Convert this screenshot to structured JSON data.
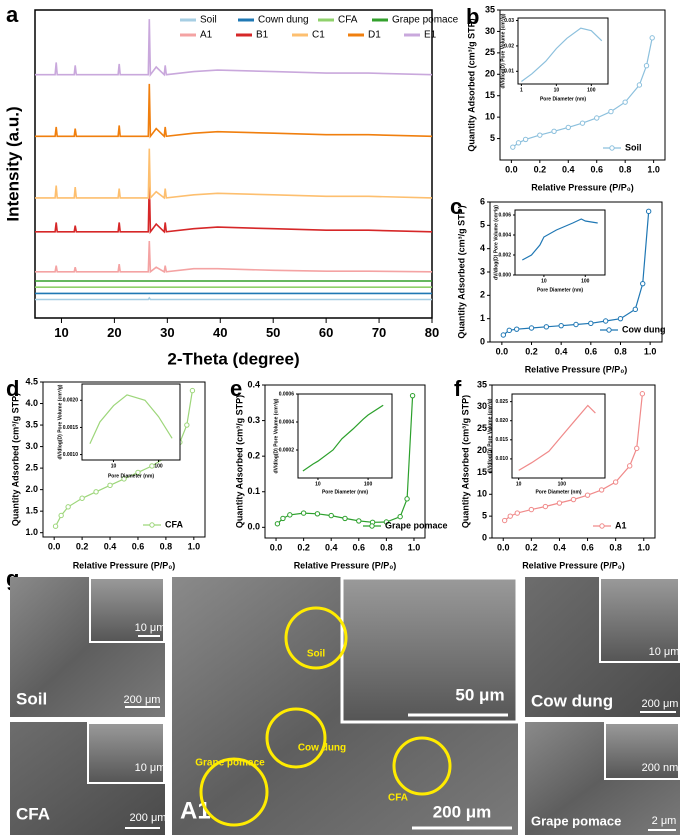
{
  "chart_data": [
    {
      "type": "line",
      "x_label": "2-Theta (degree)",
      "y_label": "Intensity (a.u.)",
      "x": [
        5,
        8.8,
        9.0,
        9.2,
        12.4,
        12.6,
        12.8,
        20.7,
        20.9,
        21.1,
        26.4,
        26.6,
        26.8,
        27.9,
        29.4,
        29.6,
        29.8,
        35,
        39.5,
        50.1,
        60,
        68,
        80
      ],
      "xlim": [
        5,
        80
      ],
      "xticks": [
        10,
        20,
        30,
        40,
        50,
        60,
        70,
        80
      ],
      "ylim": [
        0,
        100
      ],
      "legend": "top",
      "series": [
        {
          "name": "Soil",
          "color": "#a6cee3",
          "values": [
            6,
            6,
            6,
            6,
            6,
            6,
            6,
            6,
            6,
            6,
            6,
            6.5,
            6,
            6,
            6,
            6,
            6,
            6,
            6,
            6,
            6,
            6,
            6
          ]
        },
        {
          "name": "Cown dung",
          "color": "#1f78b4",
          "values": [
            8,
            8,
            8,
            8,
            8,
            8,
            8,
            8,
            8,
            8,
            8,
            8,
            8,
            8,
            8,
            8,
            8,
            8,
            8,
            8,
            8,
            8,
            8
          ]
        },
        {
          "name": "CFA",
          "color": "#8fd16b",
          "values": [
            10,
            10,
            10,
            10,
            10,
            10,
            10,
            10,
            10,
            10,
            10,
            10,
            10,
            10,
            10,
            10,
            10,
            10,
            10,
            10,
            10,
            10,
            10
          ]
        },
        {
          "name": "Grape pomace",
          "color": "#33a02c",
          "values": [
            12,
            12,
            12,
            12,
            12,
            12,
            12,
            12,
            12,
            12,
            12,
            12,
            12,
            12,
            12,
            12,
            12,
            12,
            12,
            12,
            12,
            12,
            12
          ]
        },
        {
          "name": "A1",
          "color": "#f4a3a3",
          "values": [
            15,
            15,
            17,
            15,
            15,
            16.5,
            15,
            15,
            17.5,
            15,
            15,
            25,
            15,
            16.5,
            15,
            17,
            15,
            16,
            16,
            15.5,
            15.2,
            15.2,
            15
          ]
        },
        {
          "name": "B1",
          "color": "#d62728",
          "values": [
            28,
            28,
            31,
            28,
            28,
            30,
            28,
            28,
            31,
            28,
            28,
            45,
            28,
            30.5,
            28,
            31,
            28,
            29,
            29.5,
            29,
            28.5,
            28.5,
            28
          ]
        },
        {
          "name": "C1",
          "color": "#fdbf6f",
          "values": [
            39,
            39,
            43,
            39,
            39,
            42.5,
            39,
            39,
            42,
            39,
            39,
            55,
            39,
            41,
            39,
            42,
            39,
            40,
            40.5,
            40,
            39.5,
            39.5,
            39
          ]
        },
        {
          "name": "D1",
          "color": "#f07f0e",
          "values": [
            59,
            59,
            62,
            59,
            59,
            61.5,
            59,
            59,
            62.5,
            59,
            59,
            76,
            59,
            61.5,
            59,
            62,
            59,
            60,
            60.5,
            60,
            59.5,
            59.5,
            59
          ]
        },
        {
          "name": "E1",
          "color": "#c9a8dc",
          "values": [
            79,
            79,
            83,
            79,
            79,
            82,
            79,
            79,
            82.5,
            79,
            79,
            97,
            79,
            81.5,
            79,
            82,
            79,
            80,
            80.5,
            80,
            79.5,
            79.5,
            79
          ]
        }
      ]
    },
    {
      "type": "line",
      "x_label": "Relative Pressure (P/P₀)",
      "y_label": "Quantity Adsorbed (cm³/g STP)",
      "markers": true,
      "legend": "lower right",
      "x": [
        0.01,
        0.05,
        0.1,
        0.2,
        0.3,
        0.4,
        0.5,
        0.6,
        0.7,
        0.8,
        0.9,
        0.95,
        0.99
      ],
      "xlim": [
        -0.08,
        1.08
      ],
      "xticks": [
        {
          "value": 0,
          "label": "0.0"
        },
        0.2,
        0.4,
        0.6,
        0.8,
        {
          "value": 1,
          "label": "1.0"
        }
      ],
      "ylim": [
        0,
        35
      ],
      "yticks": [
        5,
        10,
        15,
        20,
        25,
        30,
        35
      ],
      "series": [
        {
          "name": "Soil",
          "color": "#8cc0dd",
          "values": [
            3,
            4,
            4.8,
            5.8,
            6.7,
            7.6,
            8.6,
            9.8,
            11.3,
            13.5,
            17.5,
            22,
            28.5
          ]
        }
      ]
    },
    {
      "type": "line",
      "x_label": "Pore Diameter (nm)",
      "y_label": "dV/dlog(D) Pore Volume (cm³/g)",
      "xscale": "log",
      "x": [
        1,
        2,
        5,
        10,
        20,
        50,
        100,
        200
      ],
      "xlim": [
        0.8,
        300
      ],
      "xticks": [
        1,
        10,
        100
      ],
      "ylim": [
        0.005,
        0.031
      ],
      "yticks": [
        0.01,
        0.02,
        0.03
      ],
      "series": [
        {
          "color": "#8cc0dd",
          "values": [
            0.006,
            0.009,
            0.014,
            0.019,
            0.023,
            0.027,
            0.026,
            0.022
          ]
        }
      ]
    },
    {
      "type": "line",
      "x_label": "Relative Pressure (P/P₀)",
      "y_label": "Quantity Adsorbed (cm³/g STP)",
      "markers": true,
      "legend": "lower right",
      "x": [
        0.01,
        0.05,
        0.1,
        0.2,
        0.3,
        0.4,
        0.5,
        0.6,
        0.7,
        0.8,
        0.9,
        0.95,
        0.99
      ],
      "xlim": [
        -0.08,
        1.08
      ],
      "xticks": [
        {
          "value": 0,
          "label": "0.0"
        },
        0.2,
        0.4,
        0.6,
        0.8,
        {
          "value": 1,
          "label": "1.0"
        }
      ],
      "ylim": [
        0,
        6
      ],
      "yticks": [
        0,
        1,
        2,
        3,
        4,
        5,
        6
      ],
      "series": [
        {
          "name": "Cow dung",
          "color": "#1f77b4",
          "values": [
            0.3,
            0.5,
            0.55,
            0.6,
            0.65,
            0.7,
            0.75,
            0.8,
            0.9,
            1.0,
            1.4,
            2.5,
            5.6
          ]
        }
      ]
    },
    {
      "type": "line",
      "x_label": "Pore Diameter (nm)",
      "y_label": "dV/dlog(D) Pore Volume (cm³/g)",
      "xscale": "log",
      "x": [
        3,
        5,
        8,
        10,
        20,
        50,
        80,
        100,
        200
      ],
      "xlim": [
        2,
        300
      ],
      "xticks": [
        10,
        100
      ],
      "ylim": [
        0,
        0.0065
      ],
      "yticks": [
        {
          "value": 0,
          "label": "0.000"
        },
        0.002,
        0.004,
        0.006
      ],
      "series": [
        {
          "color": "#1f77b4",
          "values": [
            0.0015,
            0.002,
            0.003,
            0.0038,
            0.0045,
            0.0052,
            0.0056,
            0.0054,
            0.0052
          ]
        }
      ]
    },
    {
      "type": "line",
      "x_label": "Relative Pressure (P/P₀)",
      "y_label": "Quantity Adsorbed (cm³/g STP)",
      "markers": true,
      "legend": "lower right",
      "x": [
        0.01,
        0.05,
        0.1,
        0.2,
        0.3,
        0.4,
        0.5,
        0.6,
        0.7,
        0.8,
        0.9,
        0.95,
        0.99
      ],
      "xlim": [
        -0.08,
        1.08
      ],
      "xticks": [
        {
          "value": 0,
          "label": "0.0"
        },
        0.2,
        0.4,
        0.6,
        0.8,
        {
          "value": 1,
          "label": "1.0"
        }
      ],
      "ylim": [
        0.9,
        4.5
      ],
      "yticks": [
        {
          "value": 1,
          "label": "1.0"
        },
        1.5,
        {
          "value": 2,
          "label": "2.0"
        },
        2.5,
        {
          "value": 3,
          "label": "3.0"
        },
        3.5,
        {
          "value": 4,
          "label": "4.0"
        },
        4.5
      ],
      "series": [
        {
          "name": "CFA",
          "color": "#9dd67a",
          "values": [
            1.15,
            1.4,
            1.6,
            1.8,
            1.95,
            2.1,
            2.25,
            2.4,
            2.55,
            2.75,
            3.1,
            3.5,
            4.3
          ]
        }
      ]
    },
    {
      "type": "line",
      "x_label": "Pore Diameter (nm)",
      "y_label": "dV/dlog(D) Pore Volume (cm³/g)",
      "xscale": "log",
      "x": [
        3,
        5,
        10,
        20,
        50,
        100,
        200
      ],
      "xlim": [
        2,
        300
      ],
      "xticks": [
        10,
        100
      ],
      "ylim": [
        0.0009,
        0.0023
      ],
      "yticks": [
        {
          "value": 0.001,
          "label": "0.0010"
        },
        0.0015,
        {
          "value": 0.002,
          "label": "0.0020"
        }
      ],
      "series": [
        {
          "color": "#9dd67a",
          "values": [
            0.0012,
            0.0016,
            0.0019,
            0.0021,
            0.002,
            0.0017,
            0.0013
          ]
        }
      ]
    },
    {
      "type": "line",
      "x_label": "Relative Pressure (P/P₀)",
      "y_label": "Quantity Adsorbed (cm³/g STP)",
      "markers": true,
      "legend": "lower right",
      "x": [
        0.01,
        0.05,
        0.1,
        0.2,
        0.3,
        0.4,
        0.5,
        0.6,
        0.7,
        0.8,
        0.9,
        0.95,
        0.99
      ],
      "xlim": [
        -0.08,
        1.08
      ],
      "xticks": [
        {
          "value": 0,
          "label": "0.0"
        },
        0.2,
        0.4,
        0.6,
        0.8,
        {
          "value": 1,
          "label": "1.0"
        }
      ],
      "ylim": [
        -0.03,
        0.4
      ],
      "yticks": [
        {
          "value": 0,
          "label": "0.0"
        },
        0.1,
        0.2,
        0.3,
        0.4
      ],
      "series": [
        {
          "name": "Grape pomace",
          "color": "#2ca02c",
          "values": [
            0.01,
            0.025,
            0.035,
            0.04,
            0.038,
            0.033,
            0.025,
            0.018,
            0.014,
            0.015,
            0.03,
            0.08,
            0.37
          ]
        }
      ]
    },
    {
      "type": "line",
      "x_label": "Pore Diameter (nm)",
      "y_label": "dV/dlog(D) Pore Volume (cm³/g)",
      "xscale": "log",
      "x": [
        5,
        8,
        10,
        20,
        30,
        50,
        80,
        100,
        200
      ],
      "xlim": [
        4,
        300
      ],
      "xticks": [
        10,
        100
      ],
      "ylim": [
        0,
        0.0006
      ],
      "yticks": [
        0.0002,
        0.0004,
        0.0006
      ],
      "series": [
        {
          "color": "#2ca02c",
          "values": [
            5e-05,
            0.0001,
            0.00012,
            0.0002,
            0.00028,
            0.00035,
            0.00042,
            0.00045,
            0.00052
          ]
        }
      ]
    },
    {
      "type": "line",
      "x_label": "Relative Pressure (P/P₀)",
      "y_label": "Quantity Adsorbed (cm³/g STP)",
      "markers": true,
      "legend": "lower right",
      "x": [
        0.01,
        0.05,
        0.1,
        0.2,
        0.3,
        0.4,
        0.5,
        0.6,
        0.7,
        0.8,
        0.9,
        0.95,
        0.99
      ],
      "xlim": [
        -0.08,
        1.08
      ],
      "xticks": [
        {
          "value": 0,
          "label": "0.0"
        },
        0.2,
        0.4,
        0.6,
        0.8,
        {
          "value": 1,
          "label": "1.0"
        }
      ],
      "ylim": [
        0,
        35
      ],
      "yticks": [
        0,
        5,
        10,
        15,
        20,
        25,
        30,
        35
      ],
      "series": [
        {
          "name": "A1",
          "color": "#f08a8a",
          "values": [
            4,
            5,
            5.7,
            6.5,
            7.2,
            8,
            8.8,
            9.8,
            11,
            12.8,
            16.5,
            20.5,
            33
          ]
        }
      ]
    },
    {
      "type": "line",
      "x_label": "Pore Diameter (nm)",
      "y_label": "dV/dlog(D) Pore Volume (cm³/g)",
      "xscale": "log",
      "x": [
        10,
        20,
        50,
        100,
        200,
        400,
        600
      ],
      "xlim": [
        7,
        1000
      ],
      "xticks": [
        10,
        100
      ],
      "ylim": [
        0.005,
        0.027
      ],
      "yticks": [
        {
          "value": 0.01,
          "label": "0.010"
        },
        0.015,
        {
          "value": 0.02,
          "label": "0.020"
        },
        0.025
      ],
      "series": [
        {
          "color": "#f08a8a",
          "values": [
            0.007,
            0.009,
            0.012,
            0.016,
            0.02,
            0.024,
            0.022
          ]
        }
      ]
    }
  ],
  "panel_labels": [
    "a",
    "b",
    "c",
    "d",
    "e",
    "f",
    "g"
  ],
  "sem": {
    "soil": {
      "label": "Soil",
      "scale": "200 μm",
      "inset_scale": "10 μm"
    },
    "cfa": {
      "label": "CFA",
      "scale": "200 μm",
      "inset_scale": "10 μm"
    },
    "cow_dung": {
      "label": "Cow dung",
      "scale": "200 μm",
      "inset_scale": "10 μm"
    },
    "grape_pomace": {
      "label": "Grape pomace",
      "scale": "2 μm",
      "inset_scale": "200 nm"
    },
    "a1": {
      "label": "A1",
      "scale": "200 μm",
      "inset_scale": "50 μm",
      "markers": [
        "Soil",
        "Cow dung",
        "CFA",
        "Grape pomace"
      ]
    }
  }
}
